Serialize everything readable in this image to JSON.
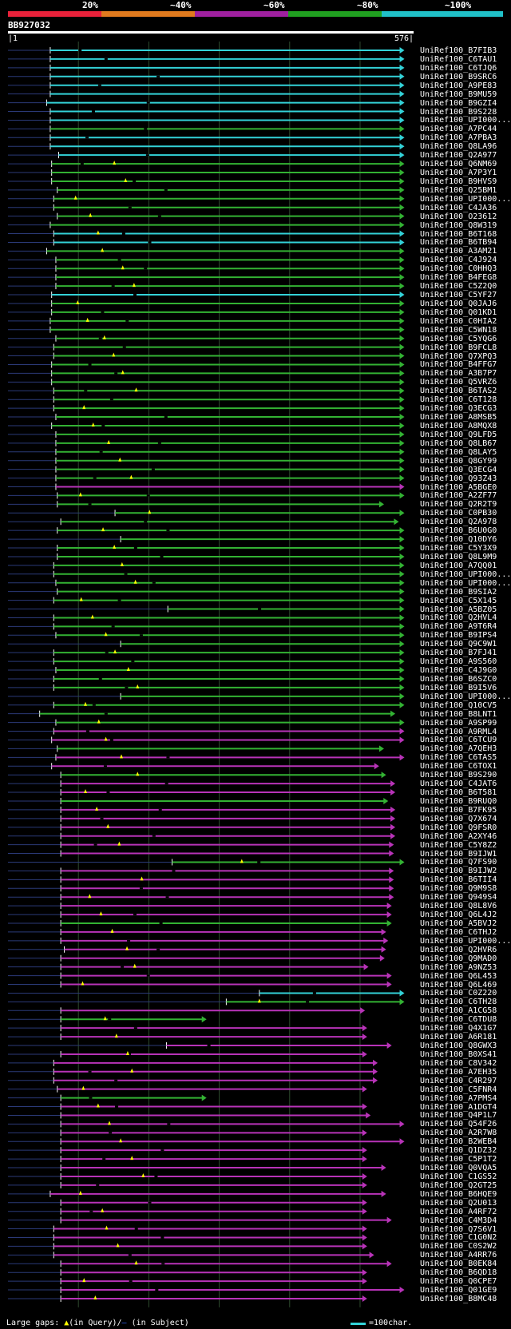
{
  "scale": {
    "segments": [
      {
        "label": "20%",
        "color": "#e8213a"
      },
      {
        "label": "~40%",
        "color": "#e07a1e"
      },
      {
        "label": "~60%",
        "color": "#a020a0"
      },
      {
        "label": "~80%",
        "color": "#20a020"
      },
      {
        "label": "~100%",
        "color": "#20c0c8"
      }
    ]
  },
  "query": {
    "name": "BB927032",
    "start": "|1",
    "end": "576|",
    "length": 576
  },
  "colors": {
    "cyan": "#33d2d8",
    "green": "#33b233",
    "magenta": "#b833b8",
    "gap": "#2b3a78",
    "grid": "#2e4a2e",
    "tri": "#ffff00",
    "black": "#000000"
  },
  "hits": [
    {
      "id": "UniRef100_B7FIB3",
      "c": "cyan",
      "s": 60,
      "e": 563
    },
    {
      "id": "UniRef100_C6TAU1",
      "c": "cyan",
      "s": 60,
      "e": 563
    },
    {
      "id": "UniRef100_C6TJQ6",
      "c": "cyan",
      "s": 60,
      "e": 563
    },
    {
      "id": "UniRef100_B9SRC6",
      "c": "cyan",
      "s": 60,
      "e": 563
    },
    {
      "id": "UniRef100_A9PE83",
      "c": "cyan",
      "s": 60,
      "e": 563
    },
    {
      "id": "UniRef100_B9MU59",
      "c": "cyan",
      "s": 60,
      "e": 563
    },
    {
      "id": "UniRef100_B9GZI4",
      "c": "cyan",
      "s": 55,
      "e": 563
    },
    {
      "id": "UniRef100_B9S228",
      "c": "cyan",
      "s": 60,
      "e": 563
    },
    {
      "id": "UniRef100_UPI000...",
      "c": "cyan",
      "s": 60,
      "e": 563
    },
    {
      "id": "UniRef100_A7PC44",
      "c": "green",
      "s": 60,
      "e": 563
    },
    {
      "id": "UniRef100_A7PBA3",
      "c": "cyan",
      "s": 60,
      "e": 563
    },
    {
      "id": "UniRef100_Q8LA96",
      "c": "cyan",
      "s": 60,
      "e": 563
    },
    {
      "id": "UniRef100_Q2A977",
      "c": "cyan",
      "s": 72,
      "e": 563
    },
    {
      "id": "UniRef100_Q6NM69",
      "c": "green",
      "s": 62,
      "e": 563
    },
    {
      "id": "UniRef100_A7P3Y1",
      "c": "green",
      "s": 62,
      "e": 563
    },
    {
      "id": "UniRef100_B9HVS9",
      "c": "green",
      "s": 62,
      "e": 563
    },
    {
      "id": "UniRef100_Q25BM1",
      "c": "green",
      "s": 70,
      "e": 563
    },
    {
      "id": "UniRef100_UPI000...",
      "c": "green",
      "s": 65,
      "e": 563
    },
    {
      "id": "UniRef100_C4JA36",
      "c": "green",
      "s": 65,
      "e": 563
    },
    {
      "id": "UniRef100_O23612",
      "c": "green",
      "s": 70,
      "e": 563
    },
    {
      "id": "UniRef100_Q8W319",
      "c": "green",
      "s": 60,
      "e": 563
    },
    {
      "id": "UniRef100_B6T168",
      "c": "cyan",
      "s": 65,
      "e": 563
    },
    {
      "id": "UniRef100_B6TB94",
      "c": "cyan",
      "s": 65,
      "e": 563
    },
    {
      "id": "UniRef100_A3AM21",
      "c": "green",
      "s": 55,
      "e": 563
    },
    {
      "id": "UniRef100_C4J924",
      "c": "green",
      "s": 68,
      "e": 563
    },
    {
      "id": "UniRef100_C0HHQ3",
      "c": "green",
      "s": 68,
      "e": 563
    },
    {
      "id": "UniRef100_B4FEG8",
      "c": "green",
      "s": 68,
      "e": 563
    },
    {
      "id": "UniRef100_C5Z2Q0",
      "c": "green",
      "s": 68,
      "e": 563
    },
    {
      "id": "UniRef100_C5YF27",
      "c": "cyan",
      "s": 62,
      "e": 563
    },
    {
      "id": "UniRef100_Q0JAJ6",
      "c": "green",
      "s": 62,
      "e": 563
    },
    {
      "id": "UniRef100_Q01KD1",
      "c": "green",
      "s": 62,
      "e": 563
    },
    {
      "id": "UniRef100_C0HIA2",
      "c": "green",
      "s": 60,
      "e": 563
    },
    {
      "id": "UniRef100_C5WN18",
      "c": "green",
      "s": 60,
      "e": 563
    },
    {
      "id": "UniRef100_C5YQG6",
      "c": "green",
      "s": 68,
      "e": 563
    },
    {
      "id": "UniRef100_B9FCL8",
      "c": "green",
      "s": 65,
      "e": 563
    },
    {
      "id": "UniRef100_Q7XPQ3",
      "c": "green",
      "s": 65,
      "e": 563
    },
    {
      "id": "UniRef100_B4FFG7",
      "c": "green",
      "s": 62,
      "e": 563
    },
    {
      "id": "UniRef100_A3B7P7",
      "c": "green",
      "s": 62,
      "e": 563
    },
    {
      "id": "UniRef100_Q5VRZ6",
      "c": "green",
      "s": 62,
      "e": 563
    },
    {
      "id": "UniRef100_B6TAS2",
      "c": "green",
      "s": 65,
      "e": 563
    },
    {
      "id": "UniRef100_C6T128",
      "c": "green",
      "s": 65,
      "e": 563
    },
    {
      "id": "UniRef100_Q3ECG3",
      "c": "green",
      "s": 65,
      "e": 563
    },
    {
      "id": "UniRef100_A8MSB5",
      "c": "green",
      "s": 68,
      "e": 563
    },
    {
      "id": "UniRef100_A8MQX8",
      "c": "green",
      "s": 62,
      "e": 563
    },
    {
      "id": "UniRef100_Q9LFD5",
      "c": "green",
      "s": 68,
      "e": 563
    },
    {
      "id": "UniRef100_Q8LB67",
      "c": "green",
      "s": 68,
      "e": 563
    },
    {
      "id": "UniRef100_Q8LAY5",
      "c": "green",
      "s": 68,
      "e": 563
    },
    {
      "id": "UniRef100_Q8GY99",
      "c": "green",
      "s": 68,
      "e": 563
    },
    {
      "id": "UniRef100_Q3ECG4",
      "c": "green",
      "s": 68,
      "e": 563
    },
    {
      "id": "UniRef100_Q93Z43",
      "c": "green",
      "s": 68,
      "e": 563
    },
    {
      "id": "UniRef100_A5BGE0",
      "c": "magenta",
      "s": 68,
      "e": 563
    },
    {
      "id": "UniRef100_A2ZF77",
      "c": "green",
      "s": 70,
      "e": 563
    },
    {
      "id": "UniRef100_Q2R2T9",
      "c": "green",
      "s": 70,
      "e": 534
    },
    {
      "id": "UniRef100_C0PB30",
      "c": "green",
      "s": 152,
      "e": 563
    },
    {
      "id": "UniRef100_Q2A978",
      "c": "green",
      "s": 75,
      "e": 555
    },
    {
      "id": "UniRef100_B6U0G0",
      "c": "green",
      "s": 70,
      "e": 563
    },
    {
      "id": "UniRef100_Q10DY6",
      "c": "green",
      "s": 160,
      "e": 563
    },
    {
      "id": "UniRef100_C5Y3X9",
      "c": "green",
      "s": 70,
      "e": 563
    },
    {
      "id": "UniRef100_Q8L9M9",
      "c": "green",
      "s": 70,
      "e": 563
    },
    {
      "id": "UniRef100_A7QQ01",
      "c": "green",
      "s": 65,
      "e": 563
    },
    {
      "id": "UniRef100_UPI000...",
      "c": "green",
      "s": 65,
      "e": 563
    },
    {
      "id": "UniRef100_UPI000...",
      "c": "green",
      "s": 68,
      "e": 563
    },
    {
      "id": "UniRef100_B9SIA2",
      "c": "green",
      "s": 70,
      "e": 563
    },
    {
      "id": "UniRef100_C5X145",
      "c": "green",
      "s": 65,
      "e": 563
    },
    {
      "id": "UniRef100_A5BZ05",
      "c": "green",
      "s": 227,
      "e": 563
    },
    {
      "id": "UniRef100_Q2HVL4",
      "c": "green",
      "s": 65,
      "e": 563
    },
    {
      "id": "UniRef100_A9T6R4",
      "c": "green",
      "s": 65,
      "e": 563
    },
    {
      "id": "UniRef100_B9IPS4",
      "c": "green",
      "s": 68,
      "e": 563
    },
    {
      "id": "UniRef100_Q9C9W1",
      "c": "green",
      "s": 160,
      "e": 563
    },
    {
      "id": "UniRef100_B7FJ41",
      "c": "green",
      "s": 65,
      "e": 563
    },
    {
      "id": "UniRef100_A9S560",
      "c": "green",
      "s": 65,
      "e": 563
    },
    {
      "id": "UniRef100_C4J9G0",
      "c": "green",
      "s": 68,
      "e": 563
    },
    {
      "id": "UniRef100_B6SZC0",
      "c": "green",
      "s": 65,
      "e": 563
    },
    {
      "id": "UniRef100_B9I5V6",
      "c": "green",
      "s": 65,
      "e": 563
    },
    {
      "id": "UniRef100_UPI000...",
      "c": "green",
      "s": 160,
      "e": 563
    },
    {
      "id": "UniRef100_Q10CV5",
      "c": "green",
      "s": 65,
      "e": 563
    },
    {
      "id": "UniRef100_B8LNT1",
      "c": "green",
      "s": 45,
      "e": 550
    },
    {
      "id": "UniRef100_A9SP99",
      "c": "green",
      "s": 68,
      "e": 563
    },
    {
      "id": "UniRef100_A9RML4",
      "c": "magenta",
      "s": 65,
      "e": 563
    },
    {
      "id": "UniRef100_C6TCU9",
      "c": "magenta",
      "s": 62,
      "e": 563
    },
    {
      "id": "UniRef100_A7QEH3",
      "c": "green",
      "s": 70,
      "e": 534
    },
    {
      "id": "UniRef100_C6TAS5",
      "c": "magenta",
      "s": 68,
      "e": 563
    },
    {
      "id": "UniRef100_C6TOX1",
      "c": "magenta",
      "s": 62,
      "e": 527
    },
    {
      "id": "UniRef100_B9S290",
      "c": "green",
      "s": 75,
      "e": 537
    },
    {
      "id": "UniRef100_C4JAT6",
      "c": "magenta",
      "s": 75,
      "e": 550
    },
    {
      "id": "UniRef100_B6T581",
      "c": "magenta",
      "s": 75,
      "e": 550
    },
    {
      "id": "UniRef100_B9RUQ0",
      "c": "green",
      "s": 75,
      "e": 540
    },
    {
      "id": "UniRef100_B7FK95",
      "c": "magenta",
      "s": 75,
      "e": 550
    },
    {
      "id": "UniRef100_Q7X674",
      "c": "magenta",
      "s": 75,
      "e": 550
    },
    {
      "id": "UniRef100_Q9FSR0",
      "c": "magenta",
      "s": 75,
      "e": 550
    },
    {
      "id": "UniRef100_A2XY46",
      "c": "magenta",
      "s": 75,
      "e": 550
    },
    {
      "id": "UniRef100_C5Y8Z2",
      "c": "magenta",
      "s": 75,
      "e": 548
    },
    {
      "id": "UniRef100_B9IJW1",
      "c": "magenta",
      "s": 75,
      "e": 548
    },
    {
      "id": "UniRef100_Q7FS90",
      "c": "green",
      "s": 233,
      "e": 563
    },
    {
      "id": "UniRef100_B9IJW2",
      "c": "magenta",
      "s": 75,
      "e": 548
    },
    {
      "id": "UniRef100_B6TII4",
      "c": "magenta",
      "s": 75,
      "e": 548
    },
    {
      "id": "UniRef100_Q9M9S8",
      "c": "magenta",
      "s": 75,
      "e": 548
    },
    {
      "id": "UniRef100_Q949S4",
      "c": "magenta",
      "s": 75,
      "e": 548
    },
    {
      "id": "UniRef100_Q8L8V6",
      "c": "magenta",
      "s": 75,
      "e": 545
    },
    {
      "id": "UniRef100_Q6L4J2",
      "c": "magenta",
      "s": 75,
      "e": 545
    },
    {
      "id": "UniRef100_A5BVJ2",
      "c": "green",
      "s": 75,
      "e": 545
    },
    {
      "id": "UniRef100_C6THJ2",
      "c": "magenta",
      "s": 75,
      "e": 537
    },
    {
      "id": "UniRef100_UPI000...",
      "c": "magenta",
      "s": 75,
      "e": 540
    },
    {
      "id": "UniRef100_Q2HVR6",
      "c": "magenta",
      "s": 80,
      "e": 537
    },
    {
      "id": "UniRef100_Q9MAD0",
      "c": "magenta",
      "s": 75,
      "e": 535
    },
    {
      "id": "UniRef100_A9NZ53",
      "c": "magenta",
      "s": 75,
      "e": 512
    },
    {
      "id": "UniRef100_Q6L453",
      "c": "magenta",
      "s": 75,
      "e": 545
    },
    {
      "id": "UniRef100_Q6L469",
      "c": "magenta",
      "s": 75,
      "e": 545
    },
    {
      "id": "UniRef100_C0Z220",
      "c": "cyan",
      "s": 357,
      "e": 563
    },
    {
      "id": "UniRef100_C6TH28",
      "c": "green",
      "s": 310,
      "e": 563
    },
    {
      "id": "UniRef100_A1CG58",
      "c": "magenta",
      "s": 75,
      "e": 507
    },
    {
      "id": "UniRef100_C6TDU8",
      "c": "green",
      "s": 75,
      "e": 282
    },
    {
      "id": "UniRef100_Q4X1G7",
      "c": "magenta",
      "s": 75,
      "e": 510
    },
    {
      "id": "UniRef100_A6R181",
      "c": "magenta",
      "s": 75,
      "e": 510
    },
    {
      "id": "UniRef100_Q8GWX3",
      "c": "magenta",
      "s": 225,
      "e": 545
    },
    {
      "id": "UniRef100_B0XS41",
      "c": "magenta",
      "s": 75,
      "e": 510
    },
    {
      "id": "UniRef100_C8V342",
      "c": "magenta",
      "s": 65,
      "e": 525
    },
    {
      "id": "UniRef100_A7EH35",
      "c": "magenta",
      "s": 65,
      "e": 525
    },
    {
      "id": "UniRef100_C4R297",
      "c": "magenta",
      "s": 65,
      "e": 525
    },
    {
      "id": "UniRef100_C5FNR4",
      "c": "magenta",
      "s": 70,
      "e": 510
    },
    {
      "id": "UniRef100_A7PMS4",
      "c": "green",
      "s": 75,
      "e": 282
    },
    {
      "id": "UniRef100_A1DGT4",
      "c": "magenta",
      "s": 75,
      "e": 510
    },
    {
      "id": "UniRef100_Q4P1L7",
      "c": "magenta",
      "s": 75,
      "e": 515
    },
    {
      "id": "UniRef100_Q54F26",
      "c": "magenta",
      "s": 75,
      "e": 563
    },
    {
      "id": "UniRef100_A2R7W8",
      "c": "magenta",
      "s": 75,
      "e": 510
    },
    {
      "id": "UniRef100_B2WEB4",
      "c": "magenta",
      "s": 75,
      "e": 563
    },
    {
      "id": "UniRef100_Q1DZ32",
      "c": "magenta",
      "s": 75,
      "e": 510
    },
    {
      "id": "UniRef100_C5P1T2",
      "c": "magenta",
      "s": 75,
      "e": 510
    },
    {
      "id": "UniRef100_Q0VQA5",
      "c": "magenta",
      "s": 75,
      "e": 537
    },
    {
      "id": "UniRef100_C1GS52",
      "c": "magenta",
      "s": 75,
      "e": 510
    },
    {
      "id": "UniRef100_Q2GT25",
      "c": "magenta",
      "s": 75,
      "e": 510
    },
    {
      "id": "UniRef100_B6HQE9",
      "c": "magenta",
      "s": 60,
      "e": 537
    },
    {
      "id": "UniRef100_Q2U013",
      "c": "magenta",
      "s": 75,
      "e": 510
    },
    {
      "id": "UniRef100_A4RF72",
      "c": "magenta",
      "s": 75,
      "e": 510
    },
    {
      "id": "UniRef100_C4M3D4",
      "c": "magenta",
      "s": 75,
      "e": 545
    },
    {
      "id": "UniRef100_Q7S6V1",
      "c": "magenta",
      "s": 65,
      "e": 510
    },
    {
      "id": "UniRef100_C1G0N2",
      "c": "magenta",
      "s": 65,
      "e": 510
    },
    {
      "id": "UniRef100_C0S2W2",
      "c": "magenta",
      "s": 65,
      "e": 510
    },
    {
      "id": "UniRef100_A4RR76",
      "c": "magenta",
      "s": 65,
      "e": 520
    },
    {
      "id": "UniRef100_B0EK84",
      "c": "magenta",
      "s": 75,
      "e": 545
    },
    {
      "id": "UniRef100_B6QD18",
      "c": "magenta",
      "s": 75,
      "e": 510
    },
    {
      "id": "UniRef100_Q0CPE7",
      "c": "magenta",
      "s": 75,
      "e": 510
    },
    {
      "id": "UniRef100_Q01GE9",
      "c": "magenta",
      "s": 75,
      "e": 563
    },
    {
      "id": "UniRef100_B8MC48",
      "c": "magenta",
      "s": 75,
      "e": 510
    }
  ],
  "footer": {
    "prefix": "Large gaps: ",
    "tri": "▲",
    "in_query": "(in Query)/",
    "dash": "–",
    "in_subject": " (in Subject)",
    "legend_text": "=100char."
  }
}
